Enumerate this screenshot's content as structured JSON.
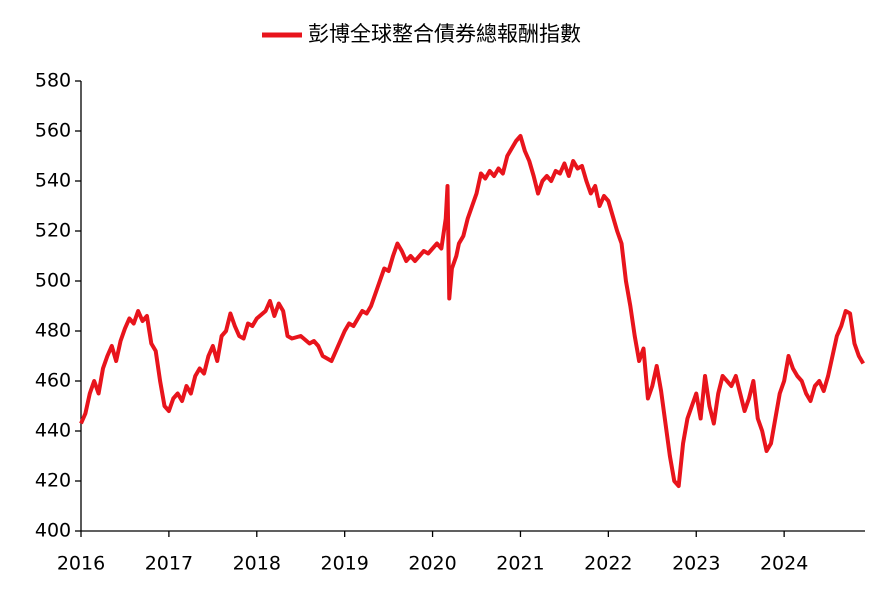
{
  "chart_data": {
    "type": "line",
    "series": [
      {
        "name": "彭博全球整合債券總報酬指數",
        "color": "#e8141c",
        "values": [
          443,
          447,
          455,
          460,
          455,
          465,
          470,
          474,
          468,
          476,
          481,
          485,
          483,
          488,
          484,
          486,
          475,
          472,
          460,
          450,
          448,
          453,
          455,
          452,
          458,
          455,
          462,
          465,
          463,
          470,
          474,
          468,
          478,
          480,
          487,
          482,
          478,
          477,
          483,
          482,
          485,
          488,
          492,
          486,
          491,
          488,
          478,
          477,
          478,
          475,
          476,
          474,
          470,
          469,
          468,
          472,
          476,
          480,
          483,
          482,
          485,
          488,
          487,
          490,
          495,
          500,
          505,
          504,
          510,
          515,
          512,
          508,
          510,
          508,
          510,
          512,
          511,
          513,
          515,
          513,
          525,
          538,
          493,
          505,
          510,
          515,
          518,
          525,
          530,
          535,
          543,
          541,
          544,
          542,
          545,
          543,
          550,
          553,
          556,
          558,
          552,
          548,
          542,
          535,
          540,
          542,
          540,
          544,
          543,
          547,
          542,
          548,
          545,
          546,
          540,
          535,
          538,
          530,
          534,
          532,
          526,
          520,
          515,
          500,
          490,
          478,
          468,
          473,
          453,
          458,
          466,
          456,
          443,
          430,
          420,
          418,
          435,
          445,
          450,
          455,
          445,
          462,
          450,
          443,
          455,
          462,
          460,
          458,
          462,
          455,
          448,
          453,
          460,
          445,
          440,
          432,
          435,
          445,
          455,
          460,
          470,
          465,
          462,
          460,
          455,
          452,
          458,
          460,
          456,
          462,
          470,
          478,
          482,
          488,
          487,
          475,
          470,
          467
        ]
      }
    ],
    "x": [
      2016.0,
      2016.05,
      2016.1,
      2016.15,
      2016.2,
      2016.25,
      2016.3,
      2016.35,
      2016.4,
      2016.45,
      2016.5,
      2016.55,
      2016.6,
      2016.65,
      2016.7,
      2016.75,
      2016.8,
      2016.85,
      2016.9,
      2016.95,
      2017.0,
      2017.05,
      2017.1,
      2017.15,
      2017.2,
      2017.25,
      2017.3,
      2017.35,
      2017.4,
      2017.45,
      2017.5,
      2017.55,
      2017.6,
      2017.65,
      2017.7,
      2017.75,
      2017.8,
      2017.85,
      2017.9,
      2017.95,
      2018.0,
      2018.1,
      2018.15,
      2018.2,
      2018.25,
      2018.3,
      2018.35,
      2018.4,
      2018.5,
      2018.6,
      2018.65,
      2018.7,
      2018.75,
      2018.8,
      2018.85,
      2018.9,
      2018.95,
      2019.0,
      2019.05,
      2019.1,
      2019.15,
      2019.2,
      2019.25,
      2019.3,
      2019.35,
      2019.4,
      2019.45,
      2019.5,
      2019.55,
      2019.6,
      2019.65,
      2019.7,
      2019.75,
      2019.8,
      2019.85,
      2019.9,
      2019.95,
      2020.0,
      2020.05,
      2020.1,
      2020.15,
      2020.17,
      2020.19,
      2020.22,
      2020.27,
      2020.3,
      2020.35,
      2020.4,
      2020.45,
      2020.5,
      2020.55,
      2020.6,
      2020.65,
      2020.7,
      2020.75,
      2020.8,
      2020.85,
      2020.9,
      2020.95,
      2021.0,
      2021.05,
      2021.1,
      2021.15,
      2021.2,
      2021.25,
      2021.3,
      2021.35,
      2021.4,
      2021.45,
      2021.5,
      2021.55,
      2021.6,
      2021.65,
      2021.7,
      2021.75,
      2021.8,
      2021.85,
      2021.9,
      2021.95,
      2022.0,
      2022.05,
      2022.1,
      2022.15,
      2022.2,
      2022.25,
      2022.3,
      2022.35,
      2022.4,
      2022.45,
      2022.5,
      2022.55,
      2022.6,
      2022.65,
      2022.7,
      2022.75,
      2022.8,
      2022.85,
      2022.9,
      2022.95,
      2023.0,
      2023.05,
      2023.1,
      2023.15,
      2023.2,
      2023.25,
      2023.3,
      2023.35,
      2023.4,
      2023.45,
      2023.5,
      2023.55,
      2023.6,
      2023.65,
      2023.7,
      2023.75,
      2023.8,
      2023.85,
      2023.9,
      2023.95,
      2024.0,
      2024.05,
      2024.1,
      2024.15,
      2024.2,
      2024.25,
      2024.3,
      2024.35,
      2024.4,
      2024.45,
      2024.5,
      2024.55,
      2024.6,
      2024.65,
      2024.7,
      2024.75,
      2024.8,
      2024.85,
      2024.9
    ],
    "xlim": [
      2016,
      2024.92
    ],
    "xticks": [
      2016,
      2017,
      2018,
      2019,
      2020,
      2021,
      2022,
      2023,
      2024
    ],
    "ylim": [
      400,
      580
    ],
    "yticks": [
      400,
      420,
      440,
      460,
      480,
      500,
      520,
      540,
      560,
      580
    ],
    "legend": "top",
    "grid": false
  }
}
